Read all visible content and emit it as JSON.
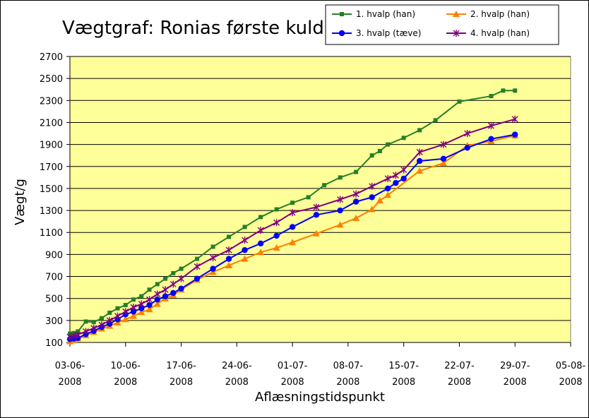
{
  "chart_data": {
    "type": "line",
    "title": "Vægtgraf: Ronias første kuld",
    "xlabel": "Aflæsningstidspunkt",
    "ylabel": "Vægt/g",
    "ylim": [
      100,
      2700
    ],
    "yticks": [
      100,
      300,
      500,
      700,
      900,
      1100,
      1300,
      1500,
      1700,
      1900,
      2100,
      2300,
      2500,
      2700
    ],
    "xlim": [
      0,
      63
    ],
    "xticks": [
      {
        "x": 0,
        "line1": "03-06-",
        "line2": "2008"
      },
      {
        "x": 7,
        "line1": "10-06-",
        "line2": "2008"
      },
      {
        "x": 14,
        "line1": "17-06-",
        "line2": "2008"
      },
      {
        "x": 21,
        "line1": "24-06-",
        "line2": "2008"
      },
      {
        "x": 28,
        "line1": "01-07-",
        "line2": "2008"
      },
      {
        "x": 35,
        "line1": "08-07-",
        "line2": "2008"
      },
      {
        "x": 42,
        "line1": "15-07-",
        "line2": "2008"
      },
      {
        "x": 49,
        "line1": "22-07-",
        "line2": "2008"
      },
      {
        "x": 56,
        "line1": "29-07-",
        "line2": "2008"
      },
      {
        "x": 63,
        "line1": "05-08-",
        "line2": "2008"
      }
    ],
    "plot_background": "#ffff99",
    "grid": true,
    "legend_position": "top-right",
    "series": [
      {
        "name": "1. hvalp (han)",
        "color": "#267f26",
        "marker": "square",
        "x": [
          0,
          0.5,
          1,
          2,
          3,
          4,
          5,
          6,
          7,
          8,
          9,
          10,
          11,
          12,
          13,
          14,
          16,
          18,
          20,
          22,
          24,
          26,
          28,
          30,
          32,
          34,
          36,
          38,
          39,
          40,
          42,
          44,
          46,
          49,
          53,
          54.5,
          56
        ],
        "y": [
          180,
          185,
          200,
          290,
          285,
          320,
          370,
          410,
          440,
          490,
          520,
          580,
          630,
          680,
          730,
          770,
          860,
          970,
          1060,
          1150,
          1240,
          1310,
          1370,
          1420,
          1530,
          1600,
          1650,
          1800,
          1840,
          1900,
          1960,
          2030,
          2120,
          2290,
          2340,
          2390,
          2390
        ]
      },
      {
        "name": "2. hvalp (han)",
        "color": "#ff7f00",
        "marker": "triangle",
        "x": [
          0,
          0.5,
          1,
          2,
          3,
          4,
          5,
          6,
          7,
          8,
          9,
          10,
          11,
          12,
          13,
          14,
          16,
          18,
          20,
          22,
          24,
          26,
          28,
          31,
          34,
          36,
          38,
          39,
          40,
          44,
          47,
          50,
          53,
          56
        ],
        "y": [
          110,
          120,
          135,
          165,
          195,
          225,
          250,
          280,
          310,
          340,
          375,
          400,
          450,
          500,
          530,
          580,
          670,
          740,
          800,
          860,
          920,
          960,
          1010,
          1090,
          1170,
          1230,
          1310,
          1390,
          1440,
          1660,
          1730,
          1890,
          1930,
          1980
        ]
      },
      {
        "name": "3. hvalp (tæve)",
        "color": "#0000ff",
        "marker": "circle",
        "x": [
          0,
          0.5,
          1,
          2,
          3,
          4,
          5,
          6,
          7,
          8,
          9,
          10,
          11,
          12,
          13,
          14,
          16,
          18,
          20,
          22,
          24,
          26,
          28,
          31,
          34,
          36,
          38,
          40,
          41,
          42,
          44,
          47,
          50,
          53,
          56
        ],
        "y": [
          130,
          135,
          140,
          175,
          205,
          240,
          270,
          310,
          355,
          380,
          410,
          440,
          490,
          520,
          550,
          590,
          680,
          770,
          860,
          940,
          1000,
          1070,
          1150,
          1260,
          1300,
          1380,
          1420,
          1500,
          1550,
          1590,
          1750,
          1770,
          1870,
          1950,
          1990
        ]
      },
      {
        "name": "4. hvalp (han)",
        "color": "#800080",
        "marker": "star",
        "x": [
          0,
          0.5,
          1,
          2,
          3,
          4,
          5,
          6,
          7,
          8,
          9,
          10,
          11,
          12,
          13,
          14,
          16,
          18,
          20,
          22,
          24,
          26,
          28,
          31,
          34,
          36,
          38,
          40,
          41,
          42,
          44,
          47,
          50,
          53,
          56
        ],
        "y": [
          150,
          160,
          170,
          200,
          230,
          260,
          300,
          340,
          380,
          420,
          450,
          490,
          540,
          580,
          630,
          680,
          790,
          870,
          940,
          1030,
          1120,
          1190,
          1280,
          1330,
          1400,
          1450,
          1520,
          1590,
          1620,
          1670,
          1830,
          1900,
          2000,
          2070,
          2130
        ]
      }
    ]
  }
}
